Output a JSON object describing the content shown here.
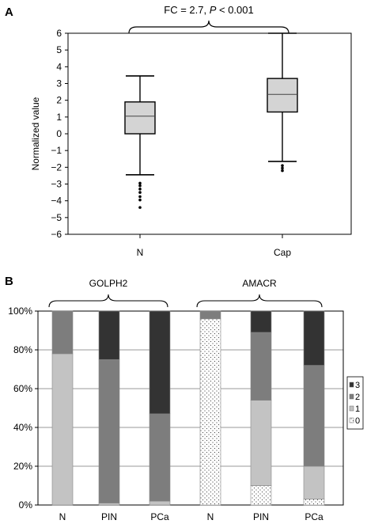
{
  "panel_labels": [
    "A",
    "B"
  ],
  "chart_data": [
    {
      "type": "boxplot",
      "ylabel": "Normalized value",
      "ylim": [
        -6,
        6
      ],
      "yticks": [
        "6",
        "5",
        "4",
        "3",
        "2",
        "1",
        "0",
        "−1",
        "−2",
        "−3",
        "−4",
        "−5",
        "−6"
      ],
      "annotation": {
        "prefix": "FC = 2.7, ",
        "p_symbol": "P",
        "suffix": " < 0.001"
      },
      "groups": [
        {
          "label": "N",
          "q1": 0.0,
          "median": 1.05,
          "q3": 1.9,
          "whisker_low": -2.45,
          "whisker_high": 3.45,
          "outliers": [
            -2.95,
            -3.1,
            -3.3,
            -3.5,
            -3.75,
            -3.95,
            -4.4
          ]
        },
        {
          "label": "Cap",
          "q1": 1.3,
          "median": 2.35,
          "q3": 3.3,
          "whisker_low": -1.65,
          "whisker_high": 6.0,
          "outliers": [
            -1.9,
            -2.05,
            -2.2
          ]
        }
      ],
      "grid": false
    },
    {
      "type": "stacked-bar",
      "ylim": [
        0,
        100
      ],
      "yticks": [
        "100%",
        "80%",
        "60%",
        "40%",
        "20%",
        "0%"
      ],
      "categories": [
        "N",
        "PIN",
        "PCa",
        "N",
        "PIN",
        "PCa"
      ],
      "group_labels": [
        {
          "label": "GOLPH2",
          "bars": [
            0,
            2
          ]
        },
        {
          "label": "AMACR",
          "bars": [
            3,
            5
          ]
        }
      ],
      "series": [
        {
          "name": "0",
          "values": [
            0,
            0,
            0,
            96,
            10,
            3
          ]
        },
        {
          "name": "1",
          "values": [
            78,
            1,
            2,
            0,
            44,
            17
          ]
        },
        {
          "name": "2",
          "values": [
            22,
            74,
            45,
            4,
            35,
            52
          ]
        },
        {
          "name": "3",
          "values": [
            0,
            25,
            53,
            0,
            11,
            28
          ]
        }
      ],
      "legend": {
        "placement": "right",
        "order": [
          "3",
          "2",
          "1",
          "0"
        ]
      },
      "grid": true
    }
  ],
  "colors": {
    "s0": "#ffffff",
    "s1": "#c3c3c3",
    "s2": "#7d7d7d",
    "s3": "#333333",
    "box": "#d4d4d4",
    "grid": "#9a9a9a"
  }
}
